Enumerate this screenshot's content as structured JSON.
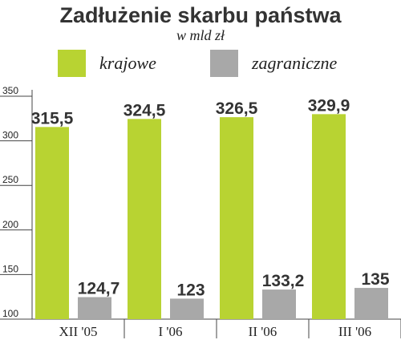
{
  "chart_data": {
    "type": "bar",
    "title": "Zadłużenie skarbu państwa",
    "subtitle": "w mld zł",
    "categories": [
      "XII '05",
      "I '06",
      "II '06",
      "III '06"
    ],
    "series": [
      {
        "name": "krajowe",
        "color": "#b8d332",
        "values": [
          315.5,
          324.5,
          326.5,
          329.9
        ],
        "value_labels": [
          "315,5",
          "324,5",
          "326,5",
          "329,9"
        ]
      },
      {
        "name": "zagraniczne",
        "color": "#a8a8a8",
        "values": [
          124.7,
          123,
          133.2,
          135
        ],
        "value_labels": [
          "124,7",
          "123",
          "133,2",
          "135"
        ]
      }
    ],
    "ylim": [
      100,
      350
    ],
    "yticks": [
      100,
      150,
      200,
      250,
      300,
      350
    ]
  }
}
